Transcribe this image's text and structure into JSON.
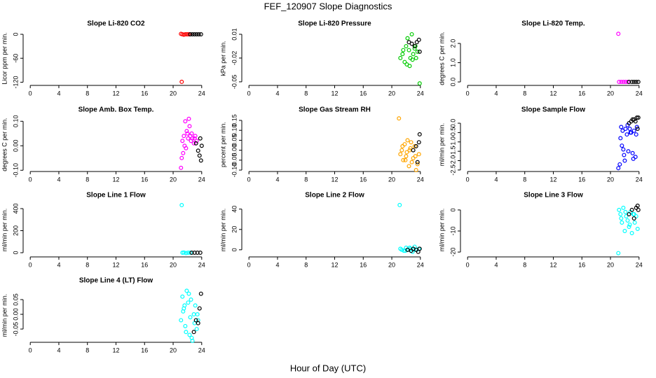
{
  "title": "FEF_120907  Slope Diagnostics",
  "xlabel": "Hour of Day (UTC)",
  "chart_data": [
    {
      "type": "scatter",
      "title": "Slope Li-820 CO2",
      "ylabel": "Licor ppm per min.",
      "xlim": [
        -1,
        25
      ],
      "xticks": [
        0,
        4,
        8,
        12,
        16,
        20,
        24
      ],
      "ylim": [
        -128,
        7
      ],
      "yticks": [
        -120,
        -60,
        0
      ],
      "series": [
        {
          "color": "#ff0000",
          "x": [
            21.1,
            21.3,
            21.5,
            21.7,
            21.9,
            22.1,
            22.3,
            21.2
          ],
          "values": [
            1,
            0,
            -1,
            0,
            0,
            0,
            0,
            -119
          ]
        },
        {
          "color": "#000000",
          "x": [
            22.4,
            22.7,
            23,
            23.3,
            23.6,
            23.9
          ],
          "values": [
            0,
            0,
            0,
            0,
            0,
            0
          ]
        }
      ]
    },
    {
      "type": "scatter",
      "title": "Slope Li-820 Pressure",
      "ylabel": "kPa per min.",
      "xlim": [
        -1,
        25
      ],
      "xticks": [
        0,
        4,
        8,
        12,
        16,
        20,
        24
      ],
      "ylim": [
        -0.0545,
        0.0135
      ],
      "yticks": [
        -0.05,
        -0.02,
        0.01
      ],
      "series": [
        {
          "color": "#00cc00",
          "x": [
            21.2,
            21.5,
            21.8,
            22,
            22.2,
            22.4,
            22.6,
            22.8,
            23,
            23.2,
            23.4,
            23.6,
            21.6,
            22.1,
            22.5,
            22.9,
            23.3,
            23.9
          ],
          "values": [
            -0.02,
            -0.015,
            -0.025,
            -0.005,
            0.005,
            -0.01,
            -0.02,
            0.01,
            -0.015,
            -0.008,
            -0.02,
            -0.012,
            -0.01,
            -0.028,
            -0.03,
            -0.022,
            -0.005,
            -0.052
          ]
        },
        {
          "color": "#000000",
          "x": [
            22.4,
            22.8,
            23.2,
            23.5,
            23.8,
            23.9
          ],
          "values": [
            0,
            -0.002,
            -0.005,
            0,
            0.003,
            -0.012
          ]
        }
      ]
    },
    {
      "type": "scatter",
      "title": "Slope Li-820 Temp.",
      "ylabel": "degrees C per min.",
      "xlim": [
        -1,
        25
      ],
      "xticks": [
        0,
        4,
        8,
        12,
        16,
        20,
        24
      ],
      "ylim": [
        -0.18,
        2.62
      ],
      "yticks": [
        {
          "value": 0,
          "label": "0.0"
        },
        {
          "value": 1,
          "label": "1.0"
        },
        {
          "value": 2,
          "label": "2.0"
        }
      ],
      "series": [
        {
          "color": "#ff00ff",
          "x": [
            21.1,
            21.2,
            21.5,
            21.8,
            22.1,
            22.4
          ],
          "values": [
            2.5,
            0,
            0,
            0,
            0,
            0
          ]
        },
        {
          "color": "#000000",
          "x": [
            22.6,
            23,
            23.3,
            23.6,
            23.9
          ],
          "values": [
            0,
            0,
            0,
            0,
            0
          ]
        }
      ]
    },
    {
      "type": "scatter",
      "title": "Slope Amb. Box Temp.",
      "ylabel": "degrees C per min.",
      "xlim": [
        -1,
        25
      ],
      "xticks": [
        0,
        4,
        8,
        12,
        16,
        20,
        24
      ],
      "ylim": [
        -0.105,
        0.115
      ],
      "yticks": [
        {
          "value": -0.1,
          "label": "-0.10"
        },
        {
          "value": 0,
          "label": "0.00"
        },
        {
          "value": 0.1,
          "label": "0.10"
        }
      ],
      "series": [
        {
          "color": "#ff00ff",
          "x": [
            21.1,
            21.3,
            21.5,
            21.7,
            21.9,
            22.1,
            22.3,
            22.5,
            22.7,
            22.9,
            23.1,
            23.3,
            21.4,
            21.8,
            22.2,
            22.6,
            23,
            21.2,
            21.6,
            22,
            22.4
          ],
          "values": [
            -0.09,
            0.02,
            0.04,
            0.1,
            0.06,
            0.03,
            0.08,
            0.02,
            0.03,
            0.01,
            0.04,
            0.02,
            -0.03,
            -0.01,
            0.11,
            0.05,
            0.03,
            -0.05,
            0,
            0.05,
            0.04
          ]
        },
        {
          "color": "#000000",
          "x": [
            23.2,
            23.5,
            23.7,
            23.8,
            24,
            23.9
          ],
          "values": [
            0.01,
            -0.02,
            -0.04,
            0.03,
            0,
            -0.06
          ]
        }
      ]
    },
    {
      "type": "scatter",
      "title": "Slope Gas Stream RH",
      "ylabel": "percent per min.",
      "xlim": [
        -1,
        25
      ],
      "xticks": [
        0,
        4,
        8,
        12,
        16,
        20,
        24
      ],
      "ylim": [
        -0.107,
        0.164
      ],
      "yticks": [
        {
          "value": -0.1,
          "label": "-0.10"
        },
        {
          "value": -0.05,
          "label": "-0.05"
        },
        {
          "value": 0,
          "label": "0.00"
        },
        {
          "value": 0.05,
          "label": "0.05"
        },
        {
          "value": 0.1,
          "label": "0.10"
        },
        {
          "value": 0.15,
          "label": "0.15"
        }
      ],
      "series": [
        {
          "color": "#ffa500",
          "x": [
            21,
            21.2,
            21.4,
            21.6,
            21.8,
            22,
            22.2,
            22.4,
            22.6,
            22.8,
            23,
            23.2,
            23.4,
            23.6,
            23.8,
            21.5,
            22.1,
            22.7,
            23.3,
            21.9,
            22.5
          ],
          "values": [
            0.16,
            -0.02,
            0,
            -0.05,
            0.03,
            -0.03,
            0.05,
            -0.08,
            0.01,
            -0.06,
            -0.04,
            0.02,
            -0.1,
            -0.07,
            -0.02,
            0.02,
            -0.01,
            0.04,
            -0.03,
            -0.05,
            0
          ]
        },
        {
          "color": "#000000",
          "x": [
            23,
            23.4,
            23.6,
            23.9,
            23.8
          ],
          "values": [
            0,
            0.02,
            -0.06,
            0.08,
            0.04
          ]
        }
      ]
    },
    {
      "type": "scatter",
      "title": "Slope Sample Flow",
      "ylabel": "ml/min per min.",
      "xlim": [
        -1,
        25
      ],
      "xticks": [
        0,
        4,
        8,
        12,
        16,
        20,
        24
      ],
      "ylim": [
        -2.58,
        0.3
      ],
      "yticks": [
        {
          "value": -2.5,
          "label": "-2.5"
        },
        {
          "value": -2,
          "label": "-2.0"
        },
        {
          "value": -1.5,
          "label": "-1.5"
        },
        {
          "value": -1,
          "label": "-1.0"
        },
        {
          "value": -0.5,
          "label": "-0.5"
        },
        {
          "value": 0,
          "label": "0.0"
        }
      ],
      "series": [
        {
          "color": "#0000ff",
          "x": [
            21.1,
            21.3,
            21.5,
            21.7,
            21.9,
            22.1,
            22.3,
            22.5,
            22.7,
            22.9,
            23.1,
            23.3,
            23.5,
            23.7,
            21.6,
            22,
            22.4,
            22.8,
            23.2,
            23.6,
            21.4,
            21.8
          ],
          "values": [
            -2.4,
            -2.2,
            -0.2,
            -0.4,
            -1.7,
            -0.3,
            -0.6,
            -1.5,
            -0.3,
            -0.5,
            -1.6,
            -0.4,
            -1.8,
            -0.2,
            -1.2,
            -2,
            -0.1,
            -0.5,
            -1.9,
            -0.6,
            -0.8,
            -1.4
          ]
        },
        {
          "color": "#000000",
          "x": [
            22.6,
            22.9,
            23.1,
            23.3,
            23.5,
            23.7,
            23.9,
            23.8
          ],
          "values": [
            0,
            0.1,
            0.2,
            0.2,
            0.1,
            0.3,
            0.3,
            -0.3
          ]
        }
      ]
    },
    {
      "type": "scatter",
      "title": "Slope Line 1 Flow",
      "ylabel": "ml/min per min.",
      "xlim": [
        -1,
        25
      ],
      "xticks": [
        0,
        4,
        8,
        12,
        16,
        20,
        24
      ],
      "ylim": [
        -38,
        451
      ],
      "yticks": [
        0,
        200,
        400
      ],
      "series": [
        {
          "color": "#00ffff",
          "x": [
            21.2,
            21.3,
            21.5,
            21.8,
            22.1,
            22.4
          ],
          "values": [
            432,
            0,
            2,
            -3,
            0,
            0
          ]
        },
        {
          "color": "#000000",
          "x": [
            22.6,
            23,
            23.4,
            23.8
          ],
          "values": [
            0,
            0,
            0,
            0
          ]
        }
      ]
    },
    {
      "type": "scatter",
      "title": "Slope Line 2 Flow",
      "ylabel": "ml/min per min.",
      "xlim": [
        -1,
        25
      ],
      "xticks": [
        0,
        4,
        8,
        12,
        16,
        20,
        24
      ],
      "ylim": [
        -7,
        46
      ],
      "yticks": [
        0,
        20,
        40
      ],
      "series": [
        {
          "color": "#00ffff",
          "x": [
            21.1,
            21.2,
            21.4,
            21.7,
            22,
            22.3,
            22.6,
            22.9,
            23.2,
            23.5,
            23.8,
            21.9,
            22.5,
            23.1
          ],
          "values": [
            44,
            1,
            0,
            -1,
            2,
            0,
            1,
            -2,
            3,
            0,
            1,
            -1,
            2,
            0
          ]
        },
        {
          "color": "#000000",
          "x": [
            22.2,
            22.7,
            23,
            23.4,
            23.7,
            23.9
          ],
          "values": [
            0,
            -1,
            1,
            0,
            -2,
            1
          ]
        }
      ]
    },
    {
      "type": "scatter",
      "title": "Slope Line 3 Flow",
      "ylabel": "ml/min per min.",
      "xlim": [
        -1,
        25
      ],
      "xticks": [
        0,
        4,
        8,
        12,
        16,
        20,
        24
      ],
      "ylim": [
        -22.3,
        3.3
      ],
      "yticks": [
        -20,
        -10,
        0
      ],
      "series": [
        {
          "color": "#00ffff",
          "x": [
            21.1,
            21.2,
            21.4,
            21.6,
            21.8,
            22,
            22.2,
            22.4,
            22.6,
            22.8,
            23,
            23.2,
            23.4,
            23.6,
            23.8,
            21.5,
            22.1,
            22.7,
            23.3
          ],
          "values": [
            -20.5,
            0,
            -2,
            -6,
            1,
            -10,
            -3,
            -5,
            -8,
            -1,
            -11,
            -2,
            -6,
            -3,
            -9,
            -4,
            -1,
            -7,
            -2
          ]
        },
        {
          "color": "#000000",
          "x": [
            22.6,
            23,
            23.3,
            23.6,
            23.8,
            23.9
          ],
          "values": [
            -2,
            0,
            -4,
            1,
            2,
            0
          ]
        }
      ]
    },
    {
      "type": "scatter",
      "title": "Slope Line 4 (LT) Flow",
      "ylabel": "ml/min per min.",
      "xlim": [
        -1,
        25
      ],
      "xticks": [
        0,
        4,
        8,
        12,
        16,
        20,
        24
      ],
      "ylim": [
        -0.095,
        0.088
      ],
      "yticks": [
        {
          "value": -0.05,
          "label": "-0.05"
        },
        {
          "value": 0,
          "label": "0.00"
        },
        {
          "value": 0.05,
          "label": "0.05"
        }
      ],
      "series": [
        {
          "color": "#00ffff",
          "x": [
            21.1,
            21.3,
            21.5,
            21.7,
            21.9,
            22.1,
            22.3,
            22.5,
            22.7,
            22.9,
            23.1,
            23.3,
            23.5,
            21.4,
            21.8,
            22.2,
            22.6,
            23,
            23.4,
            21.6,
            22.4
          ],
          "values": [
            -0.02,
            0.06,
            0.02,
            -0.04,
            0.08,
            0.04,
            -0.07,
            0.05,
            -0.09,
            0,
            0.03,
            -0.05,
            -0.02,
            0.01,
            -0.06,
            0.07,
            -0.08,
            -0.03,
            0,
            0.03,
            -0.01
          ]
        },
        {
          "color": "#000000",
          "x": [
            22.9,
            23.2,
            23.5,
            23.7,
            23.9
          ],
          "values": [
            -0.06,
            -0.02,
            -0.03,
            0.02,
            0.07
          ]
        }
      ]
    }
  ]
}
